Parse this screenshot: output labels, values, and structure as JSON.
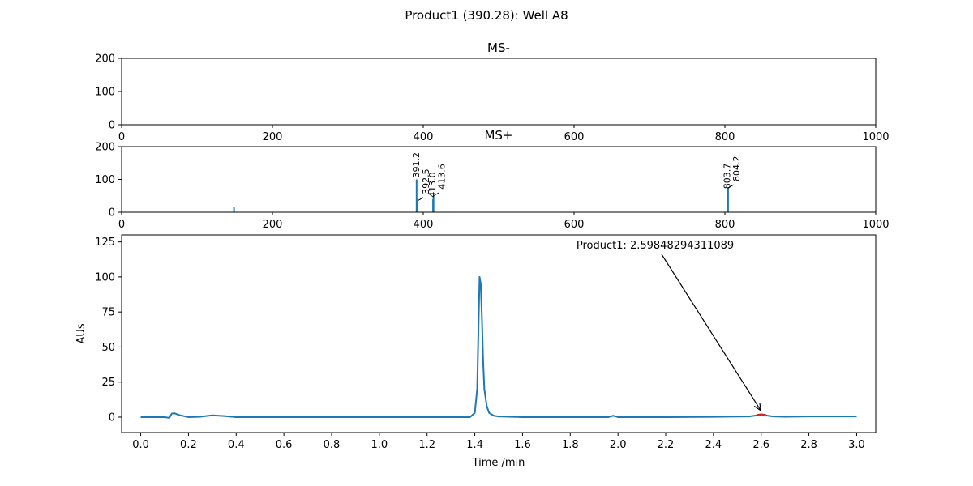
{
  "figure": {
    "title": "Product1 (390.28): Well A8"
  },
  "chart_data": [
    {
      "type": "bar",
      "title": "MS-",
      "xlim": [
        0,
        1000
      ],
      "ylim": [
        0,
        200
      ],
      "xticks": [
        0,
        200,
        400,
        600,
        800,
        1000
      ],
      "yticks": [
        0,
        100,
        200
      ],
      "peaks": []
    },
    {
      "type": "bar",
      "title": "MS+",
      "xlim": [
        0,
        1000
      ],
      "ylim": [
        0,
        200
      ],
      "xticks": [
        0,
        200,
        400,
        600,
        800,
        1000
      ],
      "yticks": [
        0,
        100,
        200
      ],
      "color": "#1f77b4",
      "peaks": [
        {
          "mz": 149.0,
          "intensity": 15,
          "label": ""
        },
        {
          "mz": 391.2,
          "intensity": 100,
          "label": "391.2"
        },
        {
          "mz": 392.5,
          "intensity": 35,
          "label": "392.5"
        },
        {
          "mz": 413.0,
          "intensity": 40,
          "label": "413.0"
        },
        {
          "mz": 413.6,
          "intensity": 50,
          "label": "413.6"
        },
        {
          "mz": 803.7,
          "intensity": 66,
          "label": "803.7"
        },
        {
          "mz": 804.2,
          "intensity": 74,
          "label": "804.2"
        }
      ]
    },
    {
      "type": "line",
      "xlabel": "Time /min",
      "ylabel": "AUs",
      "xlim": [
        -0.08,
        3.08
      ],
      "ylim": [
        -11,
        130
      ],
      "xticks": [
        "0.0",
        "0.2",
        "0.4",
        "0.6",
        "0.8",
        "1.0",
        "1.2",
        "1.4",
        "1.6",
        "1.8",
        "2.0",
        "2.2",
        "2.4",
        "2.6",
        "2.8",
        "3.0"
      ],
      "yticks": [
        0,
        25,
        50,
        75,
        100,
        125
      ],
      "series_color": "#1f77b4",
      "highlight_color": "#d62728",
      "x": [
        0.0,
        0.1,
        0.12,
        0.13,
        0.14,
        0.16,
        0.2,
        0.25,
        0.3,
        0.35,
        0.4,
        0.6,
        1.0,
        1.2,
        1.3,
        1.38,
        1.4,
        1.41,
        1.415,
        1.42,
        1.425,
        1.43,
        1.435,
        1.44,
        1.45,
        1.46,
        1.48,
        1.5,
        1.6,
        1.8,
        1.96,
        1.98,
        2.0,
        2.2,
        2.4,
        2.55,
        2.58,
        2.6,
        2.62,
        2.65,
        2.7,
        2.8,
        3.0
      ],
      "y": [
        0,
        0,
        -0.5,
        2.5,
        2.8,
        1.5,
        0,
        0.3,
        1.3,
        0.8,
        0,
        0,
        0,
        0,
        0,
        0,
        3,
        20,
        60,
        100,
        95,
        70,
        40,
        20,
        8,
        3,
        1,
        0.5,
        0,
        0,
        0,
        1,
        0,
        0,
        0.2,
        0.5,
        1.2,
        1.8,
        1.2,
        0.5,
        0.3,
        0.5,
        0.5
      ],
      "annotation": {
        "text": "Product1: 2.59848294311089",
        "x": 2.59848294311089,
        "y": 1.8
      }
    }
  ]
}
